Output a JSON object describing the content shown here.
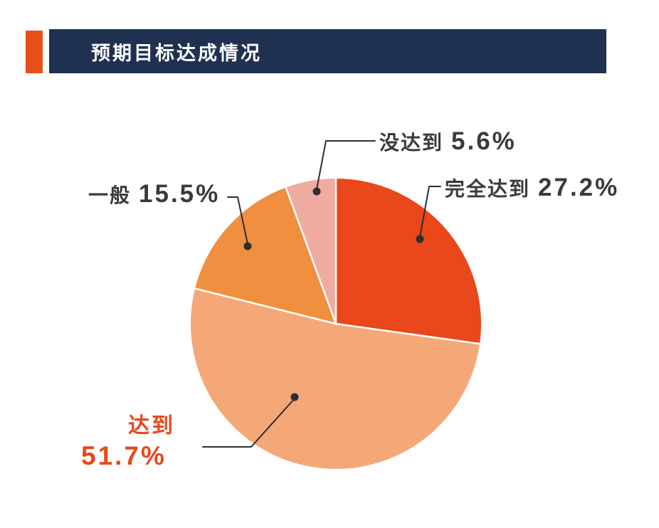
{
  "header": {
    "title": "预期目标达成情况",
    "bar_color": "#1F3151",
    "accent_color": "#E8501A"
  },
  "chart_data": {
    "type": "pie",
    "title": "预期目标达成情况",
    "start_angle_deg": 0,
    "direction": "clockwise",
    "unit": "%",
    "segments": [
      {
        "key": "fully-achieved",
        "label": "完全达到",
        "value": 27.2,
        "display": "27.2%",
        "color": "#E8481A"
      },
      {
        "key": "achieved",
        "label": "达到",
        "value": 51.7,
        "display": "51.7%",
        "color": "#F5A877"
      },
      {
        "key": "average",
        "label": "一般",
        "value": 15.5,
        "display": "15.5%",
        "color": "#F08F3F"
      },
      {
        "key": "not-achieved",
        "label": "没达到",
        "value": 5.6,
        "display": "5.6%",
        "color": "#F0ABA0"
      }
    ],
    "slice_divider_color": "#FFFFFF",
    "leader_line_color": "#2E2E2E",
    "label_text_color": "#3A3A3A",
    "highlight_text_color": "#E8481A"
  }
}
